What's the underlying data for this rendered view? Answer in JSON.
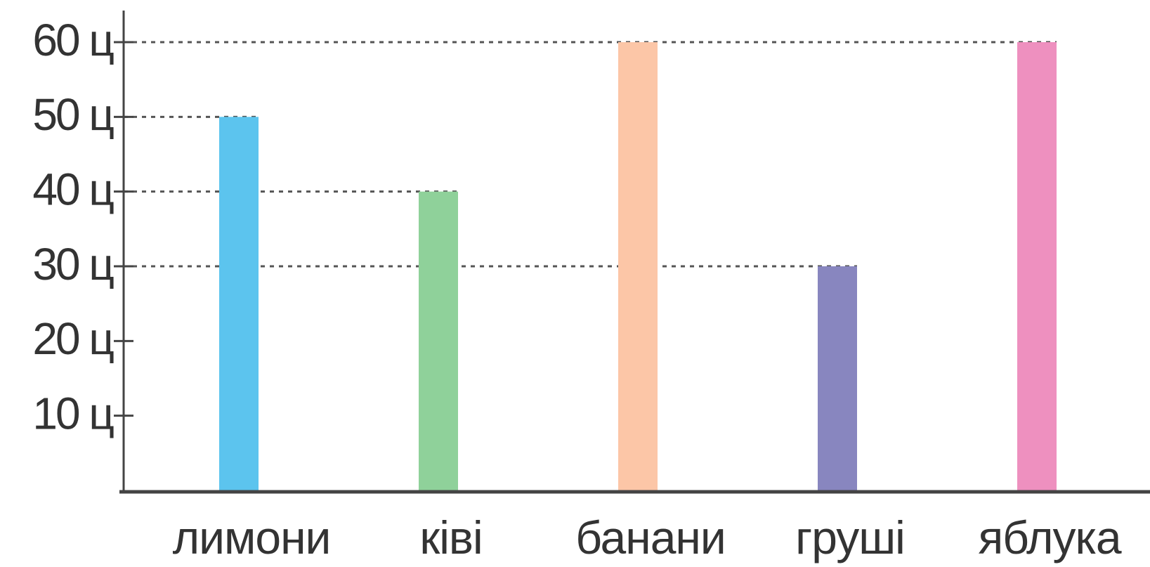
{
  "chart_data": {
    "type": "bar",
    "title": "",
    "xlabel": "",
    "ylabel": "",
    "categories": [
      "лимони",
      "ківі",
      "банани",
      "груші",
      "яблука"
    ],
    "values": [
      50,
      40,
      60,
      30,
      60
    ],
    "colors": [
      "#5cc4ee",
      "#8fd19a",
      "#fcc6a7",
      "#8886bf",
      "#ee90bf"
    ],
    "ylim": [
      0,
      60
    ],
    "yticks": [
      10,
      20,
      30,
      40,
      50,
      60
    ],
    "ytick_labels": [
      "10 ц",
      "20 ц",
      "30 ц",
      "40 ц",
      "50 ц",
      "60 ц"
    ],
    "grid": "dotted reference lines from y-axis to bar tops",
    "legend": "none"
  }
}
